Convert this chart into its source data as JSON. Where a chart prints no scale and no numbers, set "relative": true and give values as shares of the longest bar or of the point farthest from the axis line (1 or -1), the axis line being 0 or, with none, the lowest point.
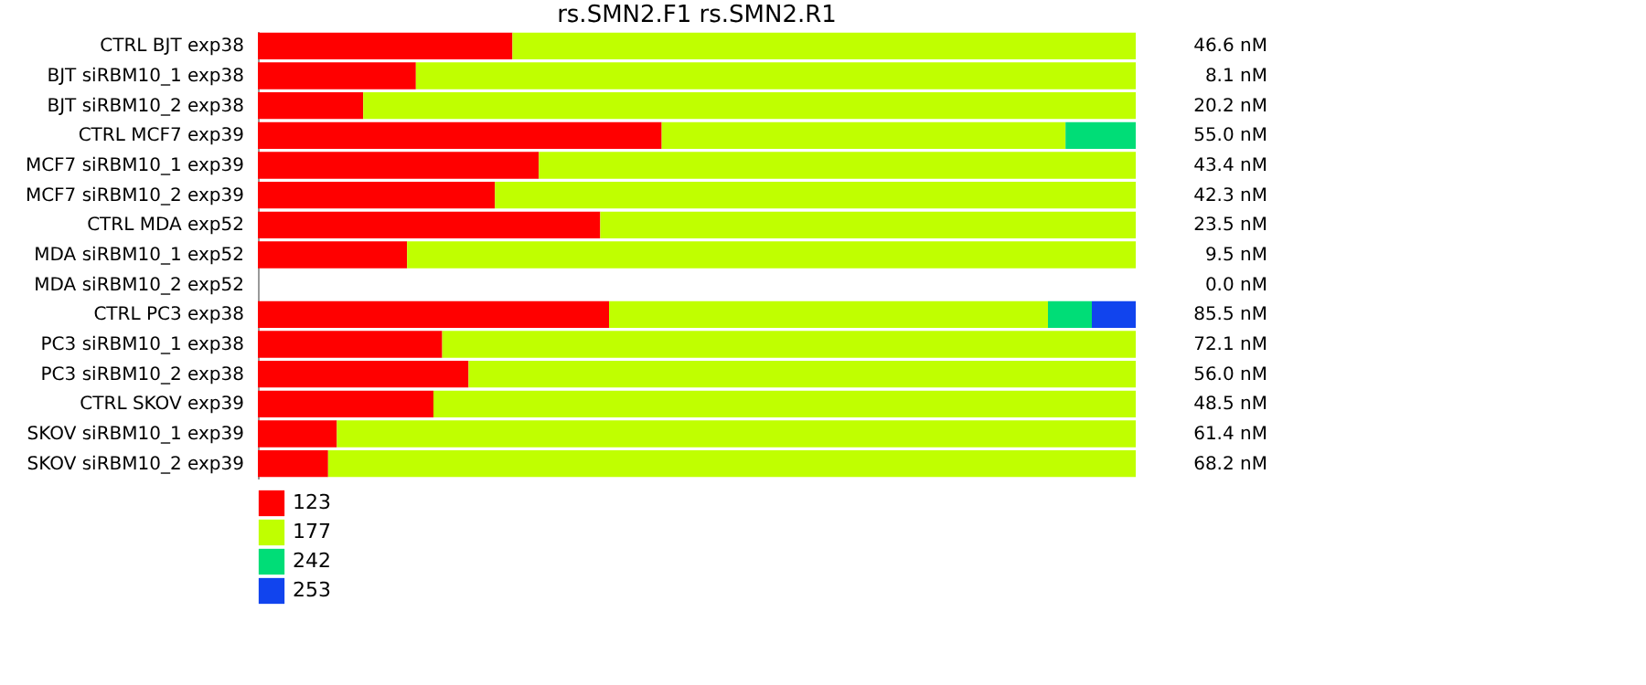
{
  "chart_data": {
    "type": "bar",
    "orientation": "horizontal",
    "stacked": true,
    "relative": true,
    "title": "rs.SMN2.F1  rs.SMN2.R1",
    "categories": [
      "CTRL BJT  exp38",
      "BJT siRBM10_1  exp38",
      "BJT siRBM10_2  exp38",
      "CTRL MCF7  exp39",
      "MCF7 siRBM10_1  exp39",
      "MCF7 siRBM10_2  exp39",
      "CTRL MDA  exp52",
      "MDA siRBM10_1 exp52",
      "MDA siRBM10_2 exp52",
      "CTRL PC3  exp38",
      "PC3 siRBM10_1 exp38",
      "PC3 siRBM10_2 exp38",
      "CTRL SKOV  exp39",
      "SKOV siRBM10_1 exp39",
      "SKOV siRBM10_2 exp39"
    ],
    "series": [
      {
        "name": "123",
        "color": "#ff0000",
        "values": [
          0.29,
          0.18,
          0.12,
          0.46,
          0.32,
          0.27,
          0.39,
          0.17,
          null,
          0.4,
          0.21,
          0.24,
          0.2,
          0.09,
          0.08
        ]
      },
      {
        "name": "177",
        "color": "#c0ff00",
        "values": [
          0.71,
          0.82,
          0.88,
          0.46,
          0.68,
          0.73,
          0.61,
          0.83,
          null,
          0.5,
          0.79,
          0.76,
          0.8,
          0.91,
          0.92
        ]
      },
      {
        "name": "242",
        "color": "#00dd77",
        "values": [
          null,
          null,
          null,
          0.08,
          null,
          null,
          null,
          null,
          null,
          0.05,
          null,
          null,
          null,
          null,
          null
        ]
      },
      {
        "name": "253",
        "color": "#1144ee",
        "values": [
          null,
          null,
          null,
          null,
          null,
          null,
          null,
          null,
          null,
          0.05,
          null,
          null,
          null,
          null,
          null
        ]
      }
    ],
    "annotations": [
      "46.6 nM",
      "8.1 nM",
      "20.2 nM",
      "55.0 nM",
      "43.4 nM",
      "42.3 nM",
      "23.5 nM",
      "9.5 nM",
      "0.0 nM",
      "85.5 nM",
      "72.1 nM",
      "56.0 nM",
      "48.5 nM",
      "61.4 nM",
      "68.2 nM"
    ],
    "legend": "bottom",
    "grid": false
  }
}
